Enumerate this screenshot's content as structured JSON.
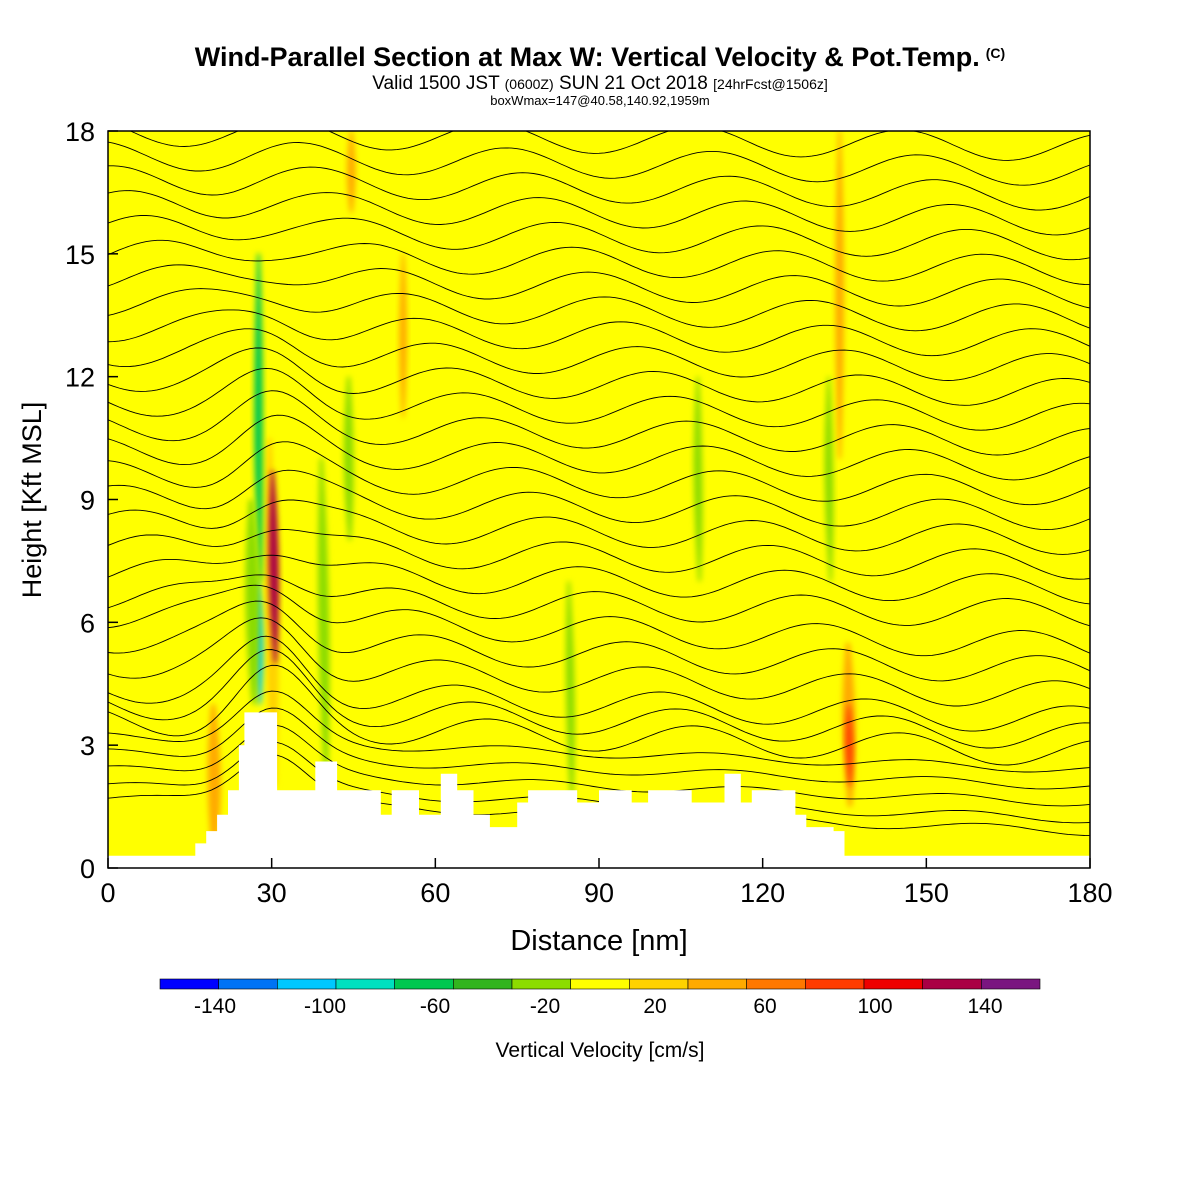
{
  "chart_data": {
    "type": "heatmap",
    "title": "Wind-Parallel Section at Max W: Vertical Velocity & Pot.Temp.",
    "title_mark": "(C)",
    "subtitle_parts": {
      "valid": "Valid 1500 JST",
      "utc": "(0600Z)",
      "date": "SUN 21 Oct 2018",
      "forecast": "[24hrFcst@1506z]"
    },
    "info_line": "boxWmax=147@40.58,140.92,1959m",
    "xlabel": "Distance [nm]",
    "ylabel": "Height [Kft MSL]",
    "xlim": [
      0,
      180
    ],
    "ylim": [
      0,
      18
    ],
    "xticks": [
      "0",
      "30",
      "60",
      "90",
      "120",
      "150",
      "180"
    ],
    "yticks": [
      "0",
      "3",
      "6",
      "9",
      "12",
      "15",
      "18"
    ],
    "colorbar": {
      "label": "Vertical Velocity [cm/s]",
      "range": [
        -160,
        160
      ],
      "tick_labels": [
        "-140",
        "-100",
        "-60",
        "-20",
        "20",
        "60",
        "100",
        "140"
      ],
      "colors": [
        "#0000ff",
        "#0073f5",
        "#00c8ff",
        "#00e0c0",
        "#00c850",
        "#32b41e",
        "#8cdc00",
        "#ffff00",
        "#ffd200",
        "#ffaa00",
        "#ff7800",
        "#ff3c00",
        "#ee0000",
        "#aa0044",
        "#7a1680"
      ]
    },
    "background_value_cms": -10,
    "updraft_bands": [
      {
        "x": 7,
        "bottom": 3,
        "top": 18,
        "w": 0.6,
        "value": 10
      },
      {
        "x": 12,
        "bottom": 0.3,
        "top": 9,
        "w": 0.6,
        "value": 10
      },
      {
        "x": 18,
        "bottom": 0.3,
        "top": 5,
        "w": 1.2,
        "value": 10
      },
      {
        "x": 19.5,
        "bottom": 0.3,
        "top": 4,
        "w": 1.2,
        "value": 50
      },
      {
        "x": 26,
        "bottom": 7,
        "top": 18,
        "w": 1.0,
        "value": 10
      },
      {
        "x": 30.5,
        "bottom": 2,
        "top": 10.5,
        "w": 1.2,
        "value": 20
      },
      {
        "x": 31,
        "bottom": 5,
        "top": 9.7,
        "w": 0.9,
        "value": 130
      },
      {
        "x": 36,
        "bottom": 2,
        "top": 16,
        "w": 1.4,
        "value": 10
      },
      {
        "x": 45,
        "bottom": 6,
        "top": 18,
        "w": 1.4,
        "value": 10
      },
      {
        "x": 45.5,
        "bottom": 16,
        "top": 18,
        "w": 0.8,
        "value": 50
      },
      {
        "x": 53,
        "bottom": 2,
        "top": 18,
        "w": 1.4,
        "value": 10
      },
      {
        "x": 55,
        "bottom": 11,
        "top": 15,
        "w": 0.7,
        "value": 50
      },
      {
        "x": 62,
        "bottom": 2,
        "top": 18,
        "w": 1.4,
        "value": 10
      },
      {
        "x": 70,
        "bottom": 3,
        "top": 18,
        "w": 1.4,
        "value": 10
      },
      {
        "x": 78,
        "bottom": 2,
        "top": 18,
        "w": 1.4,
        "value": 10
      },
      {
        "x": 88,
        "bottom": 2,
        "top": 18,
        "w": 1.4,
        "value": 10
      },
      {
        "x": 95,
        "bottom": 3,
        "top": 18,
        "w": 1.4,
        "value": 10
      },
      {
        "x": 100,
        "bottom": 6,
        "top": 18,
        "w": 1.2,
        "value": 10
      },
      {
        "x": 106,
        "bottom": 2,
        "top": 18,
        "w": 1.4,
        "value": 10
      },
      {
        "x": 115,
        "bottom": 2,
        "top": 18,
        "w": 1.4,
        "value": 10
      },
      {
        "x": 120,
        "bottom": 5,
        "top": 18,
        "w": 1.2,
        "value": 10
      },
      {
        "x": 129,
        "bottom": 3,
        "top": 18,
        "w": 1.4,
        "value": 10
      },
      {
        "x": 135,
        "bottom": 10,
        "top": 18,
        "w": 0.8,
        "value": 50
      },
      {
        "x": 136,
        "bottom": 1.5,
        "top": 5.5,
        "w": 1.2,
        "value": 50
      },
      {
        "x": 136,
        "bottom": 2,
        "top": 4,
        "w": 0.7,
        "value": 90
      },
      {
        "x": 142,
        "bottom": 5,
        "top": 18,
        "w": 1.4,
        "value": 10
      },
      {
        "x": 150,
        "bottom": 5,
        "top": 17,
        "w": 1.6,
        "value": 10
      },
      {
        "x": 163,
        "bottom": 3,
        "top": 18,
        "w": 1.8,
        "value": 10
      },
      {
        "x": 175,
        "bottom": 3,
        "top": 8,
        "w": 1.6,
        "value": 10
      }
    ],
    "downdraft_bands": [
      {
        "x": 28,
        "bottom": 4,
        "top": 7,
        "w": 0.8,
        "value": -110
      },
      {
        "x": 28.5,
        "bottom": 7,
        "top": 15,
        "w": 0.8,
        "value": -70
      },
      {
        "x": 27,
        "bottom": 4,
        "top": 9,
        "w": 1.3,
        "value": -30
      },
      {
        "x": 40,
        "bottom": 2,
        "top": 10,
        "w": 1.0,
        "value": -30
      },
      {
        "x": 45,
        "bottom": 8,
        "top": 12,
        "w": 0.9,
        "value": -30
      },
      {
        "x": 85,
        "bottom": 1.5,
        "top": 7,
        "w": 0.8,
        "value": -30
      },
      {
        "x": 109,
        "bottom": 7,
        "top": 12,
        "w": 0.8,
        "value": -30
      },
      {
        "x": 133,
        "bottom": 7,
        "top": 12,
        "w": 0.8,
        "value": -30
      }
    ],
    "terrain_height_kft": [
      [
        0,
        0.3
      ],
      [
        16,
        0.3
      ],
      [
        16,
        0.6
      ],
      [
        18,
        0.6
      ],
      [
        18,
        0.9
      ],
      [
        20,
        0.9
      ],
      [
        20,
        1.3
      ],
      [
        22,
        1.3
      ],
      [
        22,
        1.9
      ],
      [
        24,
        1.9
      ],
      [
        24,
        3.0
      ],
      [
        25,
        3.0
      ],
      [
        25,
        3.8
      ],
      [
        31,
        3.8
      ],
      [
        31,
        1.9
      ],
      [
        38,
        1.9
      ],
      [
        38,
        2.6
      ],
      [
        42,
        2.6
      ],
      [
        42,
        1.9
      ],
      [
        50,
        1.9
      ],
      [
        50,
        1.3
      ],
      [
        52,
        1.3
      ],
      [
        52,
        1.9
      ],
      [
        57,
        1.9
      ],
      [
        57,
        1.3
      ],
      [
        61,
        1.3
      ],
      [
        61,
        2.3
      ],
      [
        64,
        2.3
      ],
      [
        64,
        1.9
      ],
      [
        67,
        1.9
      ],
      [
        67,
        1.3
      ],
      [
        70,
        1.3
      ],
      [
        70,
        1.0
      ],
      [
        75,
        1.0
      ],
      [
        75,
        1.6
      ],
      [
        77,
        1.6
      ],
      [
        77,
        1.9
      ],
      [
        86,
        1.9
      ],
      [
        86,
        1.6
      ],
      [
        90,
        1.6
      ],
      [
        90,
        1.9
      ],
      [
        96,
        1.9
      ],
      [
        96,
        1.6
      ],
      [
        99,
        1.6
      ],
      [
        99,
        1.9
      ],
      [
        107,
        1.9
      ],
      [
        107,
        1.6
      ],
      [
        113,
        1.6
      ],
      [
        113,
        2.3
      ],
      [
        116,
        2.3
      ],
      [
        116,
        1.6
      ],
      [
        118,
        1.6
      ],
      [
        118,
        1.9
      ],
      [
        126,
        1.9
      ],
      [
        126,
        1.3
      ],
      [
        128,
        1.3
      ],
      [
        128,
        1.0
      ],
      [
        133,
        1.0
      ],
      [
        133,
        0.9
      ],
      [
        135,
        0.9
      ],
      [
        135,
        0.3
      ],
      [
        180,
        0.3
      ]
    ],
    "isentropes_base_kft": [
      1.3,
      1.6,
      2.0,
      2.4,
      2.8,
      3.2,
      3.6,
      4.0,
      4.6,
      5.2,
      5.8,
      6.4,
      7.0,
      7.6,
      8.2,
      8.8,
      9.4,
      10.0,
      10.6,
      11.2,
      11.8,
      12.4,
      13.0,
      13.6,
      14.2,
      14.8,
      15.4,
      16.0,
      16.6,
      17.2,
      17.8
    ]
  }
}
